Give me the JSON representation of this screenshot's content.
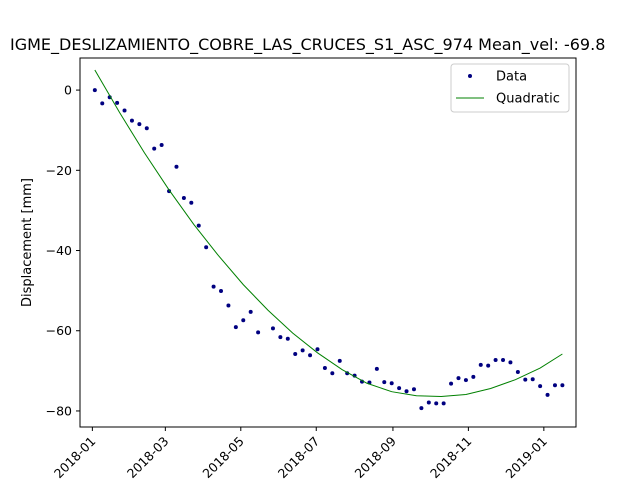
{
  "chart_data": {
    "type": "scatter",
    "title": "IGME_DESLIZAMIENTO_COBRE_LAS_CRUCES_S1_ASC_974    Mean_vel: -69.8",
    "xlabel": "",
    "ylabel": "Displacement [mm]",
    "x_type": "date",
    "xlim": [
      "2017-12-22",
      "2019-01-27"
    ],
    "ylim": [
      -84,
      8
    ],
    "x_ticks": [
      "2018-01",
      "2018-03",
      "2018-05",
      "2018-07",
      "2018-09",
      "2018-11",
      "2019-01"
    ],
    "x_tick_dates": [
      "2018-01-01",
      "2018-03-01",
      "2018-05-01",
      "2018-07-01",
      "2018-09-01",
      "2018-11-01",
      "2019-01-01"
    ],
    "y_ticks": [
      0,
      -20,
      -40,
      -60,
      -80
    ],
    "y_tick_labels": [
      "0",
      "−20",
      "−40",
      "−60",
      "−80"
    ],
    "legend": {
      "position": "top-right",
      "entries": [
        "Data",
        "Quadratic"
      ]
    },
    "colors": {
      "data": "#000080",
      "quadratic": "#008000"
    },
    "series": [
      {
        "name": "Data",
        "marker": "dot",
        "color": "#000080",
        "points": [
          [
            "2018-01-03",
            0
          ],
          [
            "2018-01-09",
            -3.3
          ],
          [
            "2018-01-15",
            -1.8
          ],
          [
            "2018-01-21",
            -3.2
          ],
          [
            "2018-01-27",
            -5.1
          ],
          [
            "2018-02-02",
            -7.6
          ],
          [
            "2018-02-08",
            -8.5
          ],
          [
            "2018-02-14",
            -9.5
          ],
          [
            "2018-02-20",
            -14.6
          ],
          [
            "2018-02-26",
            -13.7
          ],
          [
            "2018-03-04",
            -25.2
          ],
          [
            "2018-03-10",
            -19.1
          ],
          [
            "2018-03-16",
            -26.9
          ],
          [
            "2018-03-22",
            -28.1
          ],
          [
            "2018-03-28",
            -33.8
          ],
          [
            "2018-04-03",
            -39.2
          ],
          [
            "2018-04-09",
            -49
          ],
          [
            "2018-04-15",
            -50.1
          ],
          [
            "2018-04-21",
            -53.7
          ],
          [
            "2018-04-27",
            -59.1
          ],
          [
            "2018-05-03",
            -57.4
          ],
          [
            "2018-05-09",
            -55.3
          ],
          [
            "2018-05-15",
            -60.4
          ],
          [
            "2018-05-27",
            -59.4
          ],
          [
            "2018-06-02",
            -61.6
          ],
          [
            "2018-06-08",
            -62
          ],
          [
            "2018-06-14",
            -65.8
          ],
          [
            "2018-06-20",
            -64.9
          ],
          [
            "2018-06-26",
            -66.1
          ],
          [
            "2018-07-02",
            -64.6
          ],
          [
            "2018-07-08",
            -69.3
          ],
          [
            "2018-07-14",
            -70.6
          ],
          [
            "2018-07-20",
            -67.5
          ],
          [
            "2018-07-26",
            -70.6
          ],
          [
            "2018-08-01",
            -71.2
          ],
          [
            "2018-08-07",
            -72.7
          ],
          [
            "2018-08-13",
            -72.9
          ],
          [
            "2018-08-19",
            -69.5
          ],
          [
            "2018-08-25",
            -72.8
          ],
          [
            "2018-08-31",
            -73.1
          ],
          [
            "2018-09-06",
            -74.3
          ],
          [
            "2018-09-12",
            -75.1
          ],
          [
            "2018-09-18",
            -74.6
          ],
          [
            "2018-09-24",
            -79.3
          ],
          [
            "2018-09-30",
            -77.9
          ],
          [
            "2018-10-06",
            -78.1
          ],
          [
            "2018-10-12",
            -78.1
          ],
          [
            "2018-10-18",
            -73.2
          ],
          [
            "2018-10-24",
            -71.8
          ],
          [
            "2018-10-30",
            -72.3
          ],
          [
            "2018-11-05",
            -71.5
          ],
          [
            "2018-11-11",
            -68.5
          ],
          [
            "2018-11-17",
            -68.7
          ],
          [
            "2018-11-23",
            -67.3
          ],
          [
            "2018-11-29",
            -67.3
          ],
          [
            "2018-12-05",
            -67.9
          ],
          [
            "2018-12-11",
            -70.3
          ],
          [
            "2018-12-17",
            -72.2
          ],
          [
            "2018-12-23",
            -72.1
          ],
          [
            "2018-12-29",
            -73.8
          ],
          [
            "2019-01-04",
            -76
          ],
          [
            "2019-01-10",
            -73.6
          ],
          [
            "2019-01-16",
            -73.6
          ]
        ]
      },
      {
        "name": "Quadratic",
        "style": "line",
        "color": "#008000",
        "points": [
          [
            "2018-01-03",
            5
          ],
          [
            "2018-01-23",
            -5.6
          ],
          [
            "2018-02-12",
            -15.6
          ],
          [
            "2018-03-04",
            -24.9
          ],
          [
            "2018-03-24",
            -33.5
          ],
          [
            "2018-04-13",
            -41.3
          ],
          [
            "2018-05-03",
            -48.5
          ],
          [
            "2018-05-23",
            -54.9
          ],
          [
            "2018-06-12",
            -60.6
          ],
          [
            "2018-07-02",
            -65.5
          ],
          [
            "2018-07-22",
            -69.7
          ],
          [
            "2018-08-11",
            -73.1
          ],
          [
            "2018-08-31",
            -75.2
          ],
          [
            "2018-09-20",
            -76.2
          ],
          [
            "2018-10-10",
            -76.4
          ],
          [
            "2018-10-30",
            -75.9
          ],
          [
            "2018-11-19",
            -74.4
          ],
          [
            "2018-12-09",
            -72.2
          ],
          [
            "2018-12-29",
            -69.3
          ],
          [
            "2019-01-16",
            -65.8
          ]
        ]
      }
    ]
  }
}
